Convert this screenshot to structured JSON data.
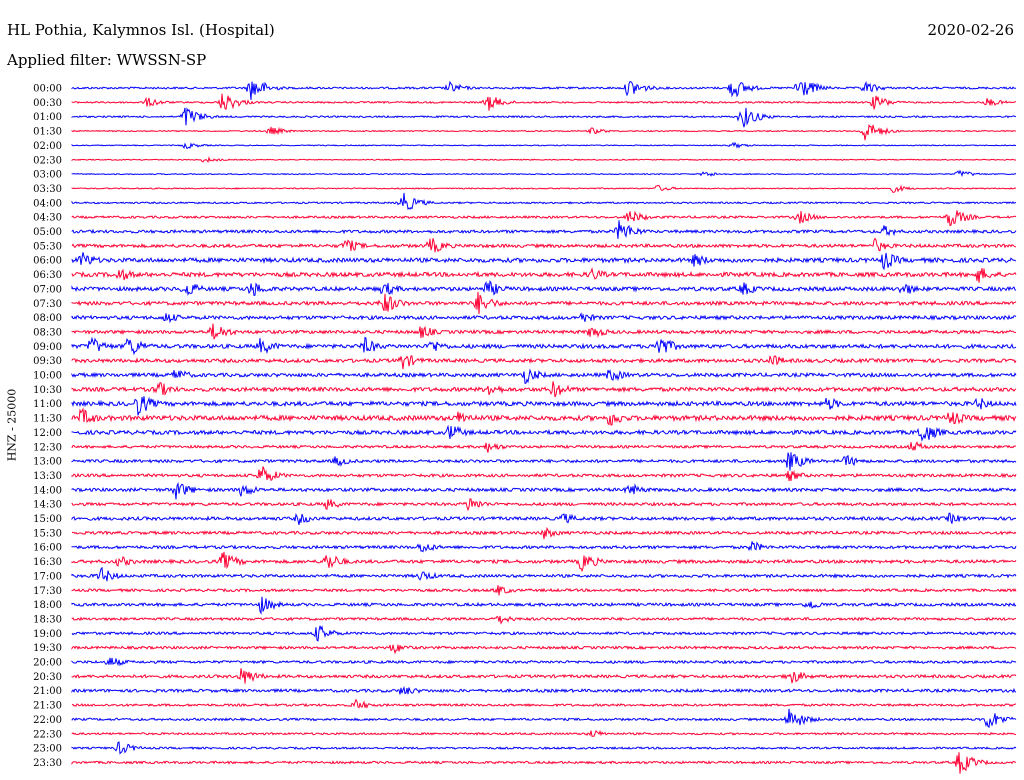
{
  "header": {
    "station_title": "HL Pothia, Kalymnos Isl. (Hospital)",
    "date": "2020-02-26",
    "filter_text": "Applied filter: WWSSN-SP"
  },
  "colors": {
    "trace_a": "#0000ff",
    "trace_b": "#ff0033",
    "background": "#ffffff"
  },
  "chart_data": {
    "type": "line",
    "title": "HL Pothia, Kalymnos Isl. (Hospital)",
    "ylabel": "HNZ - 25000",
    "date": "2020-02-26",
    "filter": "WWSSN-SP",
    "row_interval_minutes": 30,
    "trace_colors_alternating": [
      "#0000ff",
      "#ff0033"
    ],
    "rows": [
      {
        "label": "00:00",
        "amp": 0.6,
        "events": [
          [
            0.19,
            2.6
          ],
          [
            0.4,
            1.2
          ],
          [
            0.59,
            2.0
          ],
          [
            0.7,
            2.2
          ],
          [
            0.77,
            2.6
          ],
          [
            0.84,
            1.3
          ]
        ]
      },
      {
        "label": "00:30",
        "amp": 0.5,
        "events": [
          [
            0.08,
            1.0
          ],
          [
            0.16,
            2.2
          ],
          [
            0.44,
            1.8
          ],
          [
            0.85,
            1.5
          ],
          [
            0.97,
            0.9
          ]
        ]
      },
      {
        "label": "01:00",
        "amp": 0.5,
        "events": [
          [
            0.12,
            2.2
          ],
          [
            0.71,
            2.4
          ]
        ]
      },
      {
        "label": "01:30",
        "amp": 0.35,
        "events": [
          [
            0.21,
            0.9
          ],
          [
            0.55,
            0.7
          ],
          [
            0.84,
            2.2
          ]
        ]
      },
      {
        "label": "02:00",
        "amp": 0.3,
        "events": [
          [
            0.12,
            0.7
          ],
          [
            0.7,
            0.6
          ]
        ]
      },
      {
        "label": "02:30",
        "amp": 0.3,
        "events": [
          [
            0.14,
            0.6
          ]
        ]
      },
      {
        "label": "03:00",
        "amp": 0.3,
        "events": [
          [
            0.67,
            0.6
          ],
          [
            0.94,
            0.8
          ]
        ]
      },
      {
        "label": "03:30",
        "amp": 0.35,
        "events": [
          [
            0.62,
            0.7
          ],
          [
            0.87,
            0.8
          ]
        ]
      },
      {
        "label": "04:00",
        "amp": 0.5,
        "events": [
          [
            0.35,
            2.2
          ]
        ]
      },
      {
        "label": "04:30",
        "amp": 0.7,
        "events": [
          [
            0.59,
            1.5
          ],
          [
            0.77,
            1.4
          ],
          [
            0.93,
            2.2
          ]
        ]
      },
      {
        "label": "05:00",
        "amp": 0.9,
        "events": [
          [
            0.58,
            2.4
          ],
          [
            0.86,
            1.2
          ]
        ]
      },
      {
        "label": "05:30",
        "amp": 1.0,
        "events": [
          [
            0.29,
            1.6
          ],
          [
            0.38,
            1.8
          ],
          [
            0.85,
            1.5
          ]
        ]
      },
      {
        "label": "06:00",
        "amp": 1.3,
        "events": [
          [
            0.01,
            1.8
          ],
          [
            0.66,
            1.5
          ],
          [
            0.86,
            2.0
          ]
        ]
      },
      {
        "label": "06:30",
        "amp": 1.3,
        "events": [
          [
            0.05,
            1.5
          ],
          [
            0.55,
            1.4
          ],
          [
            0.96,
            1.8
          ]
        ]
      },
      {
        "label": "07:00",
        "amp": 1.2,
        "events": [
          [
            0.12,
            1.8
          ],
          [
            0.19,
            1.8
          ],
          [
            0.33,
            1.6
          ],
          [
            0.44,
            1.8
          ],
          [
            0.71,
            1.5
          ],
          [
            0.88,
            1.5
          ]
        ]
      },
      {
        "label": "07:30",
        "amp": 1.1,
        "events": [
          [
            0.33,
            2.4
          ],
          [
            0.43,
            2.4
          ]
        ]
      },
      {
        "label": "08:00",
        "amp": 1.1,
        "events": [
          [
            0.1,
            1.2
          ],
          [
            0.54,
            1.2
          ]
        ]
      },
      {
        "label": "08:30",
        "amp": 1.0,
        "events": [
          [
            0.15,
            2.0
          ],
          [
            0.37,
            1.4
          ],
          [
            0.55,
            1.5
          ]
        ]
      },
      {
        "label": "09:00",
        "amp": 1.2,
        "events": [
          [
            0.02,
            2.0
          ],
          [
            0.06,
            2.3
          ],
          [
            0.2,
            1.8
          ],
          [
            0.31,
            1.8
          ],
          [
            0.38,
            1.6
          ],
          [
            0.62,
            2.6
          ]
        ]
      },
      {
        "label": "09:30",
        "amp": 1.1,
        "events": [
          [
            0.35,
            1.8
          ],
          [
            0.74,
            1.4
          ]
        ]
      },
      {
        "label": "10:00",
        "amp": 1.1,
        "events": [
          [
            0.11,
            1.4
          ],
          [
            0.48,
            1.8
          ],
          [
            0.57,
            1.5
          ]
        ]
      },
      {
        "label": "10:30",
        "amp": 1.2,
        "events": [
          [
            0.09,
            1.8
          ],
          [
            0.44,
            1.6
          ],
          [
            0.51,
            1.8
          ]
        ]
      },
      {
        "label": "11:00",
        "amp": 1.3,
        "events": [
          [
            0.07,
            2.4
          ],
          [
            0.8,
            1.5
          ],
          [
            0.96,
            1.4
          ]
        ]
      },
      {
        "label": "11:30",
        "amp": 1.5,
        "events": [
          [
            0.01,
            2.0
          ],
          [
            0.41,
            1.6
          ],
          [
            0.57,
            1.8
          ],
          [
            0.93,
            1.8
          ]
        ]
      },
      {
        "label": "12:00",
        "amp": 1.2,
        "events": [
          [
            0.4,
            1.8
          ],
          [
            0.9,
            2.4
          ]
        ]
      },
      {
        "label": "12:30",
        "amp": 0.8,
        "events": [
          [
            0.44,
            1.2
          ],
          [
            0.89,
            1.2
          ]
        ]
      },
      {
        "label": "13:00",
        "amp": 0.9,
        "events": [
          [
            0.28,
            1.2
          ],
          [
            0.76,
            2.2
          ],
          [
            0.82,
            1.3
          ]
        ]
      },
      {
        "label": "13:30",
        "amp": 0.9,
        "events": [
          [
            0.2,
            2.2
          ],
          [
            0.76,
            1.2
          ]
        ]
      },
      {
        "label": "14:00",
        "amp": 1.0,
        "events": [
          [
            0.11,
            2.0
          ],
          [
            0.18,
            1.5
          ],
          [
            0.59,
            1.4
          ]
        ]
      },
      {
        "label": "14:30",
        "amp": 0.9,
        "events": [
          [
            0.27,
            1.2
          ],
          [
            0.42,
            1.6
          ]
        ]
      },
      {
        "label": "15:00",
        "amp": 1.0,
        "events": [
          [
            0.24,
            1.3
          ],
          [
            0.52,
            1.2
          ],
          [
            0.93,
            1.2
          ]
        ]
      },
      {
        "label": "15:30",
        "amp": 0.9,
        "events": [
          [
            0.5,
            1.2
          ]
        ]
      },
      {
        "label": "16:00",
        "amp": 0.9,
        "events": [
          [
            0.37,
            1.3
          ],
          [
            0.72,
            1.2
          ]
        ]
      },
      {
        "label": "16:30",
        "amp": 1.0,
        "events": [
          [
            0.05,
            1.2
          ],
          [
            0.16,
            2.0
          ],
          [
            0.27,
            2.0
          ],
          [
            0.54,
            2.0
          ]
        ]
      },
      {
        "label": "17:00",
        "amp": 0.9,
        "events": [
          [
            0.03,
            1.8
          ],
          [
            0.37,
            1.2
          ]
        ]
      },
      {
        "label": "17:30",
        "amp": 0.8,
        "events": [
          [
            0.45,
            1.2
          ]
        ]
      },
      {
        "label": "18:00",
        "amp": 0.9,
        "events": [
          [
            0.2,
            1.8
          ],
          [
            0.78,
            1.2
          ]
        ]
      },
      {
        "label": "18:30",
        "amp": 0.8,
        "events": [
          [
            0.45,
            1.2
          ]
        ]
      },
      {
        "label": "19:00",
        "amp": 0.8,
        "events": [
          [
            0.26,
            1.8
          ]
        ]
      },
      {
        "label": "19:30",
        "amp": 0.8,
        "events": [
          [
            0.34,
            1.2
          ]
        ]
      },
      {
        "label": "20:00",
        "amp": 0.8,
        "events": [
          [
            0.04,
            1.2
          ]
        ]
      },
      {
        "label": "20:30",
        "amp": 0.9,
        "events": [
          [
            0.18,
            2.0
          ],
          [
            0.76,
            1.8
          ]
        ]
      },
      {
        "label": "21:00",
        "amp": 0.9,
        "events": [
          [
            0.35,
            1.2
          ]
        ]
      },
      {
        "label": "21:30",
        "amp": 0.7,
        "events": [
          [
            0.3,
            1.2
          ]
        ]
      },
      {
        "label": "22:00",
        "amp": 0.7,
        "events": [
          [
            0.76,
            2.4
          ],
          [
            0.97,
            2.2
          ]
        ]
      },
      {
        "label": "22:30",
        "amp": 0.6,
        "events": [
          [
            0.55,
            0.9
          ]
        ]
      },
      {
        "label": "23:00",
        "amp": 0.6,
        "events": [
          [
            0.05,
            1.4
          ]
        ]
      },
      {
        "label": "23:30",
        "amp": 0.7,
        "events": [
          [
            0.94,
            2.4
          ]
        ]
      }
    ]
  }
}
